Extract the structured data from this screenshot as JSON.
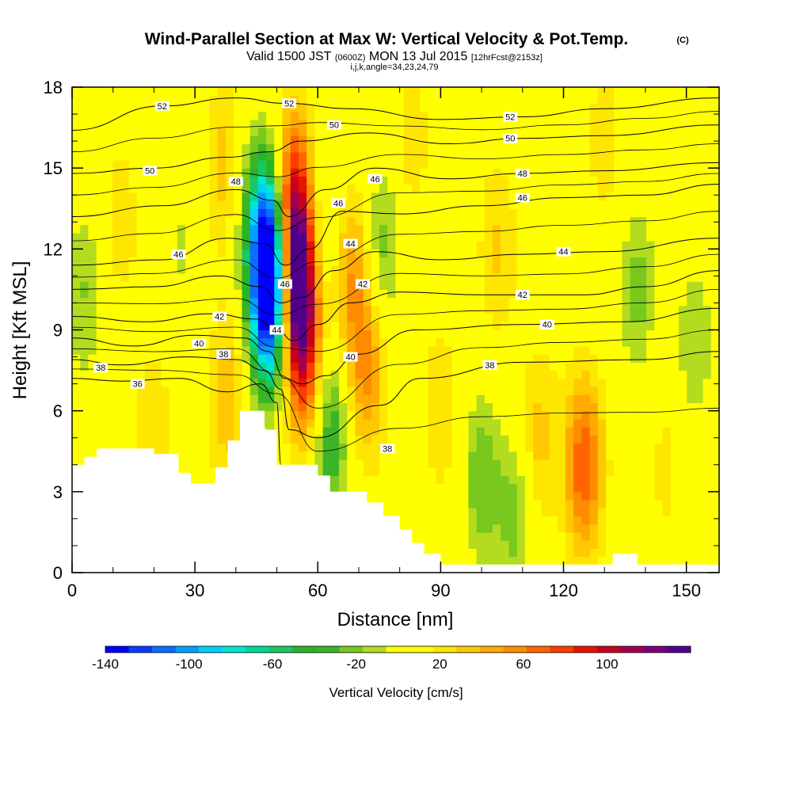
{
  "chart_data": {
    "type": "heatmap",
    "title": "Wind-Parallel Section at Max W: Vertical Velocity & Pot.Temp.",
    "title_mark": "(C)",
    "subtitle_main_a": "Valid 1500 JST",
    "subtitle_small_a": "(0600Z)",
    "subtitle_main_b": "MON 13 Jul 2015",
    "subtitle_small_b": "[12hrFcst@2153z]",
    "subtitle_line2": "i,j,k,angle=34,23,24,79",
    "xlabel": "Distance [nm]",
    "ylabel": "Height [Kft MSL]",
    "xlim": [
      0,
      158
    ],
    "ylim": [
      0,
      18
    ],
    "x_ticks": [
      0,
      30,
      60,
      90,
      120,
      150
    ],
    "y_ticks": [
      0,
      3,
      6,
      9,
      12,
      15,
      18
    ],
    "colorbar": {
      "label": "Vertical Velocity [cm/s]",
      "range": [
        -140,
        140
      ],
      "tick_values": [
        -140,
        -100,
        -60,
        -20,
        20,
        60,
        100
      ],
      "colors": [
        "#0000ff",
        "#0a3cff",
        "#0a6eff",
        "#00a0ff",
        "#00d0ff",
        "#00e6d2",
        "#00d896",
        "#18c864",
        "#28b428",
        "#3cb428",
        "#78c81e",
        "#b4dc1e",
        "#ffff00",
        "#ffff00",
        "#ffe600",
        "#ffc800",
        "#ffaa00",
        "#ff8c00",
        "#ff6400",
        "#ff3c00",
        "#e61400",
        "#c8001e",
        "#a00050",
        "#780078",
        "#50008c"
      ]
    },
    "w_field": [
      {
        "x": 3,
        "y": 10.5,
        "w": -25
      },
      {
        "x": 3,
        "y": 4.5,
        "w": -8
      },
      {
        "x": 12,
        "y": 13,
        "w": 15
      },
      {
        "x": 20,
        "y": 5,
        "w": 20
      },
      {
        "x": 27,
        "y": 12,
        "w": -15
      },
      {
        "x": 37,
        "y": 15,
        "w": 25
      },
      {
        "x": 38,
        "y": 6.5,
        "w": 30
      },
      {
        "x": 44,
        "y": 13,
        "w": -25
      },
      {
        "x": 48,
        "y": 10,
        "w": -140
      },
      {
        "x": 48,
        "y": 12.5,
        "w": -95
      },
      {
        "x": 55,
        "y": 10.5,
        "w": 125
      },
      {
        "x": 54,
        "y": 14,
        "w": 80
      },
      {
        "x": 57,
        "y": 7.5,
        "w": 55
      },
      {
        "x": 62,
        "y": 13,
        "w": -20
      },
      {
        "x": 63,
        "y": 5,
        "w": -50
      },
      {
        "x": 68,
        "y": 11,
        "w": 40
      },
      {
        "x": 76,
        "y": 12,
        "w": -30
      },
      {
        "x": 72,
        "y": 7.5,
        "w": 45
      },
      {
        "x": 83,
        "y": 16,
        "w": 15
      },
      {
        "x": 90,
        "y": 6,
        "w": 18
      },
      {
        "x": 100,
        "y": 3.5,
        "w": -35
      },
      {
        "x": 104,
        "y": 12,
        "w": 22
      },
      {
        "x": 108,
        "y": 2,
        "w": -30
      },
      {
        "x": 114,
        "y": 5,
        "w": 25
      },
      {
        "x": 125,
        "y": 4,
        "w": 65
      },
      {
        "x": 130,
        "y": 16,
        "w": 15
      },
      {
        "x": 138,
        "y": 10.5,
        "w": -30
      },
      {
        "x": 145,
        "y": 4,
        "w": 12
      },
      {
        "x": 152,
        "y": 8.5,
        "w": -25
      }
    ],
    "theta_contours": [
      {
        "label": "36",
        "points": [
          [
            0,
            7.2
          ],
          [
            12,
            7.1
          ],
          [
            26,
            7.2
          ],
          [
            38,
            6.7
          ],
          [
            46,
            7.0
          ],
          [
            50,
            6.3
          ],
          [
            51,
            4.0
          ]
        ],
        "label_at": [
          16,
          7.0
        ]
      },
      {
        "label": "38",
        "points": [
          [
            0,
            7.9
          ],
          [
            12,
            7.7
          ],
          [
            28,
            8.0
          ],
          [
            40,
            7.9
          ],
          [
            47,
            7.5
          ],
          [
            51,
            6.8
          ],
          [
            53,
            5.3
          ],
          [
            60,
            5.0
          ],
          [
            75,
            6.2
          ],
          [
            85,
            7.2
          ],
          [
            110,
            7.8
          ],
          [
            140,
            7.9
          ],
          [
            158,
            8.2
          ]
        ],
        "label_at": [
          102,
          7.7
        ]
      },
      {
        "label": "40",
        "points": [
          [
            0,
            8.7
          ],
          [
            15,
            8.4
          ],
          [
            30,
            8.8
          ],
          [
            42,
            8.7
          ],
          [
            48,
            8.2
          ],
          [
            52,
            7.2
          ],
          [
            56,
            7.0
          ],
          [
            62,
            7.3
          ],
          [
            70,
            8.1
          ],
          [
            84,
            9.0
          ],
          [
            110,
            9.2
          ],
          [
            135,
            9.3
          ],
          [
            158,
            9.8
          ]
        ],
        "label_at": [
          116,
          9.2
        ]
      },
      {
        "label": "42",
        "points": [
          [
            0,
            9.5
          ],
          [
            18,
            9.3
          ],
          [
            34,
            9.6
          ],
          [
            45,
            9.4
          ],
          [
            50,
            9.0
          ],
          [
            54,
            8.6
          ],
          [
            60,
            9.2
          ],
          [
            68,
            10.0
          ],
          [
            80,
            10.4
          ],
          [
            100,
            10.3
          ],
          [
            125,
            10.3
          ],
          [
            140,
            10.6
          ],
          [
            158,
            11.2
          ]
        ],
        "label_at": [
          110,
          10.3
        ]
      },
      {
        "label": "44",
        "points": [
          [
            0,
            10.5
          ],
          [
            20,
            10.6
          ],
          [
            36,
            11.0
          ],
          [
            46,
            10.6
          ],
          [
            51,
            10.0
          ],
          [
            56,
            10.2
          ],
          [
            64,
            11.2
          ],
          [
            74,
            11.9
          ],
          [
            90,
            11.6
          ],
          [
            110,
            11.8
          ],
          [
            130,
            11.9
          ],
          [
            158,
            12.4
          ]
        ],
        "label_at": [
          120,
          11.9
        ]
      },
      {
        "label": "46",
        "points": [
          [
            0,
            11.4
          ],
          [
            22,
            11.6
          ],
          [
            38,
            12.4
          ],
          [
            47,
            12.2
          ],
          [
            52,
            11.4
          ],
          [
            58,
            12.0
          ],
          [
            66,
            13.4
          ],
          [
            80,
            13.3
          ],
          [
            100,
            13.6
          ],
          [
            120,
            13.9
          ],
          [
            140,
            14.0
          ],
          [
            158,
            14.4
          ]
        ],
        "label_at": [
          110,
          13.9
        ]
      },
      {
        "label": "48",
        "points": [
          [
            0,
            13.2
          ],
          [
            22,
            13.6
          ],
          [
            40,
            14.2
          ],
          [
            49,
            13.8
          ],
          [
            53,
            13.2
          ],
          [
            62,
            14.2
          ],
          [
            74,
            15.0
          ],
          [
            92,
            14.6
          ],
          [
            110,
            14.8
          ],
          [
            130,
            14.9
          ],
          [
            158,
            15.2
          ]
        ],
        "label_at": [
          110,
          14.8
        ]
      },
      {
        "label": "50",
        "points": [
          [
            0,
            14.8
          ],
          [
            20,
            15.0
          ],
          [
            38,
            15.4
          ],
          [
            48,
            15.6
          ],
          [
            56,
            16.0
          ],
          [
            72,
            16.3
          ],
          [
            92,
            15.9
          ],
          [
            110,
            16.1
          ],
          [
            130,
            16.2
          ],
          [
            158,
            16.6
          ]
        ],
        "label_at": [
          107,
          16.1
        ]
      },
      {
        "label": "52",
        "points": [
          [
            0,
            16.4
          ],
          [
            22,
            17.3
          ],
          [
            40,
            17.6
          ],
          [
            52,
            17.4
          ],
          [
            68,
            17.2
          ],
          [
            90,
            16.8
          ],
          [
            110,
            16.9
          ],
          [
            130,
            17.2
          ],
          [
            158,
            17.6
          ]
        ],
        "label_at": [
          107,
          16.9
        ]
      }
    ],
    "contour_labels_extra": [
      {
        "label": "52",
        "at": [
          22,
          17.3
        ]
      },
      {
        "label": "52",
        "at": [
          53,
          17.4
        ]
      },
      {
        "label": "50",
        "at": [
          19,
          14.9
        ]
      },
      {
        "label": "50",
        "at": [
          64,
          16.6
        ]
      },
      {
        "label": "48",
        "at": [
          40,
          14.5
        ]
      },
      {
        "label": "46",
        "at": [
          26,
          11.8
        ]
      },
      {
        "label": "46",
        "at": [
          74,
          14.6
        ]
      },
      {
        "label": "46",
        "at": [
          65,
          13.7
        ]
      },
      {
        "label": "46",
        "at": [
          52,
          10.7
        ]
      },
      {
        "label": "44",
        "at": [
          68,
          12.2
        ]
      },
      {
        "label": "44",
        "at": [
          50,
          9.0
        ]
      },
      {
        "label": "42",
        "at": [
          36,
          9.5
        ]
      },
      {
        "label": "42",
        "at": [
          71,
          10.7
        ]
      },
      {
        "label": "40",
        "at": [
          31,
          8.5
        ]
      },
      {
        "label": "40",
        "at": [
          68,
          8.0
        ]
      },
      {
        "label": "38",
        "at": [
          37,
          8.1
        ]
      },
      {
        "label": "38",
        "at": [
          7,
          7.6
        ]
      },
      {
        "label": "38",
        "at": [
          77,
          4.6
        ]
      }
    ],
    "terrain": [
      [
        0,
        4.0
      ],
      [
        3,
        4.0
      ],
      [
        3,
        4.3
      ],
      [
        6,
        4.3
      ],
      [
        6,
        4.6
      ],
      [
        20,
        4.6
      ],
      [
        20,
        4.4
      ],
      [
        26,
        4.4
      ],
      [
        26,
        3.7
      ],
      [
        29,
        3.7
      ],
      [
        29,
        3.3
      ],
      [
        35,
        3.3
      ],
      [
        35,
        3.9
      ],
      [
        38,
        3.9
      ],
      [
        38,
        4.9
      ],
      [
        41,
        4.9
      ],
      [
        41,
        6.0
      ],
      [
        47,
        6.0
      ],
      [
        47,
        5.3
      ],
      [
        50,
        5.3
      ],
      [
        50,
        4.0
      ],
      [
        60,
        4.0
      ],
      [
        60,
        3.6
      ],
      [
        63,
        3.6
      ],
      [
        63,
        3.0
      ],
      [
        72,
        3.0
      ],
      [
        72,
        2.6
      ],
      [
        76,
        2.6
      ],
      [
        76,
        2.1
      ],
      [
        80,
        2.1
      ],
      [
        80,
        1.6
      ],
      [
        83,
        1.6
      ],
      [
        83,
        1.1
      ],
      [
        86,
        1.1
      ],
      [
        86,
        0.7
      ],
      [
        90,
        0.7
      ],
      [
        90,
        0.3
      ],
      [
        132,
        0.3
      ],
      [
        132,
        0.7
      ],
      [
        138,
        0.7
      ],
      [
        138,
        0.3
      ],
      [
        158,
        0.3
      ]
    ]
  }
}
